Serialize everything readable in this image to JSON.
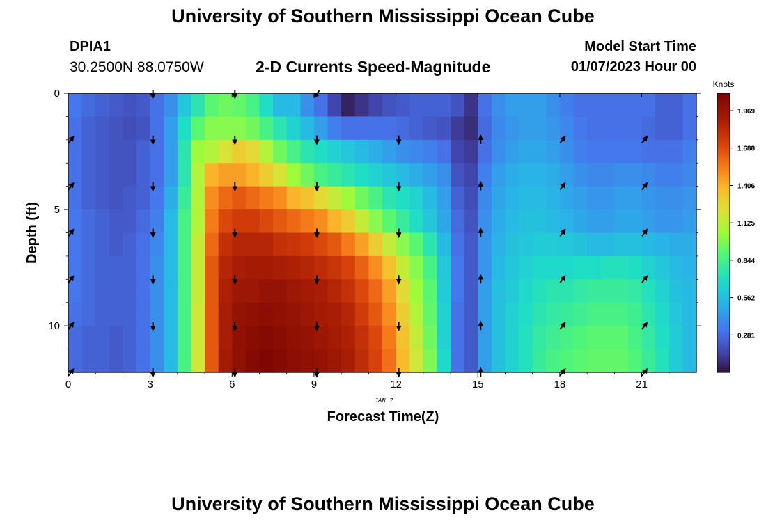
{
  "header": {
    "title": "University of Southern Mississippi Ocean Cube",
    "station": "DPIA1",
    "coordinates": "30.2500N  88.0750W",
    "subtitle": "2-D Currents Speed-Magnitude",
    "model_start_label": "Model Start Time",
    "model_start_value": "01/07/2023 Hour 00"
  },
  "footer": {
    "title": "University of Southern Mississippi Ocean Cube"
  },
  "chart_data": {
    "type": "heatmap",
    "title": "2-D Currents Speed-Magnitude",
    "xlabel": "Forecast Time(Z)",
    "ylabel": "Depth (ft)",
    "date_label": "JAN 7",
    "xlim": [
      0,
      23
    ],
    "ylim": [
      12,
      0
    ],
    "x_ticks": [
      0,
      3,
      6,
      9,
      12,
      15,
      18,
      21
    ],
    "y_ticks": [
      0,
      5,
      10
    ],
    "colorbar": {
      "label": "Knots",
      "min": 0.0,
      "max": 2.1,
      "ticks": [
        "1.969",
        "1.688",
        "1.406",
        "1.125",
        "0.844",
        "0.562",
        "0.281"
      ],
      "tick_values": [
        1.969,
        1.688,
        1.406,
        1.125,
        0.844,
        0.562,
        0.281
      ]
    },
    "arrow_rows": [
      2,
      4,
      6,
      8,
      10,
      12
    ],
    "arrows": [
      {
        "t": 0,
        "direction": "northeast"
      },
      {
        "t": 3,
        "direction": "south"
      },
      {
        "t": 6,
        "direction": "south"
      },
      {
        "t": 9,
        "direction": "south"
      },
      {
        "t": 12,
        "direction": "south"
      },
      {
        "t": 15,
        "direction": "north"
      },
      {
        "t": 18,
        "direction": "northeast"
      },
      {
        "t": 21,
        "direction": "northeast"
      }
    ],
    "speed_grid_note": "rows = depth 0..11 ft (1 ft bins), columns = forecast hours 0..22.5 (0.5 h bins)",
    "speed_grid": [
      [
        0.32,
        0.28,
        0.25,
        0.22,
        0.2,
        0.22,
        0.3,
        0.4,
        0.6,
        0.75,
        0.9,
        0.95,
        0.92,
        0.85,
        0.7,
        0.55,
        0.55,
        0.4,
        0.3,
        0.15,
        0.05,
        0.1,
        0.15,
        0.2,
        0.22,
        0.25,
        0.25,
        0.25,
        0.2,
        0.1,
        0.3,
        0.4,
        0.45,
        0.45,
        0.45,
        0.4,
        0.35,
        0.3,
        0.3,
        0.3,
        0.3,
        0.3,
        0.3,
        0.25,
        0.25,
        0.3
      ],
      [
        0.3,
        0.25,
        0.22,
        0.2,
        0.18,
        0.2,
        0.3,
        0.45,
        0.7,
        0.9,
        1.0,
        1.0,
        1.0,
        0.95,
        0.85,
        0.75,
        0.65,
        0.55,
        0.45,
        0.35,
        0.3,
        0.3,
        0.3,
        0.3,
        0.28,
        0.25,
        0.22,
        0.2,
        0.12,
        0.08,
        0.28,
        0.38,
        0.42,
        0.45,
        0.45,
        0.42,
        0.38,
        0.32,
        0.3,
        0.3,
        0.3,
        0.3,
        0.28,
        0.25,
        0.25,
        0.3
      ],
      [
        0.3,
        0.25,
        0.22,
        0.2,
        0.2,
        0.25,
        0.3,
        0.45,
        0.75,
        1.05,
        1.1,
        1.2,
        1.3,
        1.25,
        1.1,
        0.95,
        0.85,
        0.75,
        0.7,
        0.65,
        0.6,
        0.55,
        0.5,
        0.45,
        0.4,
        0.38,
        0.35,
        0.3,
        0.15,
        0.12,
        0.3,
        0.4,
        0.45,
        0.48,
        0.48,
        0.45,
        0.4,
        0.35,
        0.32,
        0.32,
        0.32,
        0.32,
        0.3,
        0.3,
        0.3,
        0.35
      ],
      [
        0.3,
        0.25,
        0.22,
        0.2,
        0.2,
        0.25,
        0.3,
        0.45,
        0.75,
        1.1,
        1.4,
        1.45,
        1.45,
        1.4,
        1.3,
        1.2,
        1.05,
        0.95,
        0.85,
        0.8,
        0.75,
        0.7,
        0.65,
        0.6,
        0.55,
        0.5,
        0.45,
        0.4,
        0.2,
        0.15,
        0.35,
        0.45,
        0.5,
        0.52,
        0.52,
        0.5,
        0.45,
        0.4,
        0.38,
        0.38,
        0.4,
        0.4,
        0.38,
        0.35,
        0.35,
        0.38
      ],
      [
        0.3,
        0.25,
        0.22,
        0.2,
        0.22,
        0.25,
        0.32,
        0.5,
        0.8,
        1.1,
        1.5,
        1.6,
        1.65,
        1.6,
        1.55,
        1.5,
        1.4,
        1.35,
        1.25,
        1.15,
        1.05,
        0.95,
        0.85,
        0.75,
        0.7,
        0.65,
        0.55,
        0.45,
        0.25,
        0.18,
        0.38,
        0.48,
        0.52,
        0.55,
        0.55,
        0.52,
        0.48,
        0.45,
        0.42,
        0.42,
        0.45,
        0.45,
        0.42,
        0.4,
        0.4,
        0.42
      ],
      [
        0.32,
        0.28,
        0.25,
        0.22,
        0.22,
        0.28,
        0.35,
        0.55,
        0.85,
        1.1,
        1.55,
        1.7,
        1.75,
        1.75,
        1.7,
        1.65,
        1.6,
        1.55,
        1.5,
        1.4,
        1.3,
        1.15,
        1.0,
        0.9,
        0.8,
        0.7,
        0.6,
        0.48,
        0.28,
        0.2,
        0.4,
        0.5,
        0.55,
        0.58,
        0.58,
        0.55,
        0.52,
        0.48,
        0.45,
        0.45,
        0.48,
        0.48,
        0.45,
        0.42,
        0.42,
        0.45
      ],
      [
        0.32,
        0.28,
        0.25,
        0.22,
        0.25,
        0.3,
        0.38,
        0.55,
        0.85,
        1.15,
        1.6,
        1.8,
        1.85,
        1.85,
        1.85,
        1.8,
        1.78,
        1.75,
        1.7,
        1.65,
        1.55,
        1.45,
        1.3,
        1.15,
        1.0,
        0.9,
        0.75,
        0.55,
        0.3,
        0.22,
        0.42,
        0.52,
        0.58,
        0.6,
        0.62,
        0.62,
        0.6,
        0.58,
        0.55,
        0.55,
        0.58,
        0.58,
        0.55,
        0.52,
        0.5,
        0.5
      ],
      [
        0.32,
        0.28,
        0.25,
        0.25,
        0.25,
        0.3,
        0.4,
        0.55,
        0.85,
        1.15,
        1.65,
        1.85,
        1.9,
        1.92,
        1.92,
        1.9,
        1.88,
        1.85,
        1.82,
        1.78,
        1.72,
        1.62,
        1.5,
        1.35,
        1.15,
        1.0,
        0.85,
        0.6,
        0.32,
        0.22,
        0.42,
        0.55,
        0.6,
        0.65,
        0.68,
        0.68,
        0.68,
        0.7,
        0.7,
        0.72,
        0.72,
        0.7,
        0.65,
        0.6,
        0.55,
        0.52
      ],
      [
        0.32,
        0.28,
        0.25,
        0.25,
        0.25,
        0.3,
        0.4,
        0.55,
        0.85,
        1.15,
        1.65,
        1.88,
        1.95,
        1.95,
        1.98,
        1.98,
        1.95,
        1.92,
        1.9,
        1.85,
        1.8,
        1.7,
        1.6,
        1.45,
        1.25,
        1.05,
        0.9,
        0.62,
        0.32,
        0.22,
        0.45,
        0.58,
        0.62,
        0.68,
        0.72,
        0.75,
        0.75,
        0.78,
        0.8,
        0.8,
        0.8,
        0.78,
        0.72,
        0.65,
        0.58,
        0.55
      ],
      [
        0.3,
        0.28,
        0.25,
        0.25,
        0.25,
        0.3,
        0.4,
        0.55,
        0.85,
        1.18,
        1.65,
        1.9,
        1.98,
        2.0,
        2.02,
        2.0,
        1.98,
        1.95,
        1.92,
        1.9,
        1.85,
        1.75,
        1.65,
        1.5,
        1.3,
        1.1,
        0.92,
        0.65,
        0.3,
        0.22,
        0.45,
        0.58,
        0.65,
        0.7,
        0.75,
        0.78,
        0.8,
        0.82,
        0.85,
        0.85,
        0.85,
        0.82,
        0.75,
        0.68,
        0.6,
        0.55
      ],
      [
        0.28,
        0.25,
        0.25,
        0.22,
        0.25,
        0.3,
        0.4,
        0.55,
        0.85,
        1.18,
        1.65,
        1.9,
        2.0,
        2.03,
        2.05,
        2.03,
        2.0,
        1.98,
        1.95,
        1.92,
        1.88,
        1.8,
        1.7,
        1.55,
        1.35,
        1.15,
        0.95,
        0.65,
        0.3,
        0.22,
        0.45,
        0.58,
        0.65,
        0.72,
        0.78,
        0.82,
        0.85,
        0.88,
        0.9,
        0.9,
        0.9,
        0.85,
        0.78,
        0.7,
        0.62,
        0.55
      ],
      [
        0.28,
        0.25,
        0.25,
        0.22,
        0.25,
        0.3,
        0.4,
        0.55,
        0.85,
        1.18,
        1.65,
        1.92,
        2.0,
        2.05,
        2.08,
        2.05,
        2.02,
        2.0,
        1.98,
        1.95,
        1.9,
        1.82,
        1.72,
        1.58,
        1.38,
        1.18,
        0.98,
        0.68,
        0.3,
        0.22,
        0.45,
        0.58,
        0.65,
        0.72,
        0.8,
        0.85,
        0.88,
        0.9,
        0.92,
        0.92,
        0.92,
        0.88,
        0.8,
        0.72,
        0.62,
        0.55
      ]
    ]
  }
}
